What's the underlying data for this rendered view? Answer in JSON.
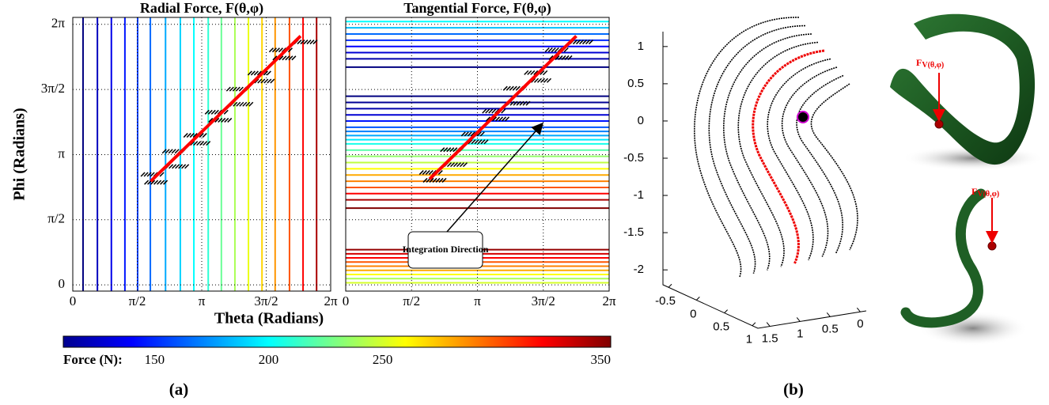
{
  "chart_data": [
    {
      "type": "vlines",
      "title": "Radial Force, F(θ,φ)",
      "xlabel": "Theta (Radians)",
      "ylabel": "Phi (Radians)",
      "xlim": [
        0,
        6.2832
      ],
      "ylim": [
        -0.15,
        6.45
      ],
      "xticks": [
        {
          "value": 0,
          "label": "0"
        },
        {
          "value": 1.5708,
          "label": "π/2"
        },
        {
          "value": 3.1416,
          "label": "π"
        },
        {
          "value": 4.7124,
          "label": "3π/2"
        },
        {
          "value": 6.2832,
          "label": "2π"
        }
      ],
      "yticks": [
        {
          "value": 0,
          "label": "0"
        },
        {
          "value": 1.5708,
          "label": "π/2"
        },
        {
          "value": 3.1416,
          "label": "π"
        },
        {
          "value": 4.7124,
          "label": "3π/2"
        },
        {
          "value": 6.2832,
          "label": "2π"
        }
      ],
      "grid": true,
      "positions": [
        0.25,
        0.6,
        0.94,
        1.27,
        1.58,
        1.89,
        2.26,
        2.62,
        2.95,
        3.3,
        3.62,
        3.95,
        4.28,
        4.61,
        4.93,
        5.28,
        5.61,
        5.94
      ],
      "values": [
        110,
        125,
        135,
        145,
        155,
        165,
        180,
        190,
        200,
        210,
        225,
        240,
        255,
        270,
        285,
        300,
        320,
        340
      ],
      "series": [
        {
          "color": "#ff0000",
          "x": [
            1.9,
            5.55
          ],
          "values": [
            2.5,
            6.0
          ]
        }
      ]
    },
    {
      "type": "hlines",
      "title": "Tangential Force, F(θ,φ)",
      "annotation": "Integration Direction",
      "xlim": [
        0,
        6.2832
      ],
      "ylim": [
        -0.15,
        6.45
      ],
      "xticks": [
        {
          "value": 0,
          "label": "0"
        },
        {
          "value": 1.5708,
          "label": "π/2"
        },
        {
          "value": 3.1416,
          "label": "π"
        },
        {
          "value": 4.7124,
          "label": "3π/2"
        },
        {
          "value": 6.2832,
          "label": "2π"
        }
      ],
      "yticks": [
        0,
        1.5708,
        3.1416,
        4.7124,
        6.2832
      ],
      "grid": true,
      "positions": [
        0.05,
        0.15,
        0.25,
        0.35,
        0.45,
        0.55,
        0.65,
        0.75,
        0.85,
        1.85,
        2.05,
        2.2,
        2.35,
        2.5,
        2.65,
        2.8,
        2.95,
        3.1,
        3.25,
        3.4,
        3.5,
        3.6,
        3.7,
        3.8,
        3.95,
        4.1,
        4.25,
        4.4,
        4.55,
        5.25,
        5.45,
        5.6,
        5.75,
        5.9,
        6.05,
        6.2,
        6.35
      ],
      "values": [
        250,
        240,
        260,
        280,
        290,
        300,
        320,
        330,
        345,
        350,
        340,
        320,
        300,
        290,
        280,
        260,
        245,
        235,
        220,
        205,
        195,
        180,
        170,
        160,
        145,
        130,
        120,
        115,
        110,
        110,
        120,
        130,
        140,
        150,
        165,
        185,
        200
      ],
      "series": [
        {
          "color": "#ff0000",
          "x": [
            2.0,
            5.5
          ],
          "values": [
            2.55,
            6.0
          ]
        }
      ]
    },
    {
      "type": "line3d",
      "xlim": [
        -0.6,
        1.1
      ],
      "xticks": [
        -0.5,
        0,
        0.5,
        1
      ],
      "ylim": [
        -0.1,
        1.7
      ],
      "yticks": [
        1.5,
        1,
        0.5,
        0
      ],
      "zlim": [
        -2.2,
        1.2
      ],
      "zticks": [
        1,
        0.5,
        0,
        -0.5,
        -1,
        -1.5,
        -2
      ]
    }
  ],
  "colorbar": {
    "label": "Force (N):",
    "clim": [
      110,
      350
    ],
    "ticks": [
      150,
      200,
      250,
      350
    ]
  },
  "panels": [
    "(a)",
    "(b)"
  ],
  "renders": [
    {
      "label": "F",
      "sub": "V(θ,φ)"
    },
    {
      "label": "F",
      "sub": "V(θ,φ)"
    }
  ]
}
